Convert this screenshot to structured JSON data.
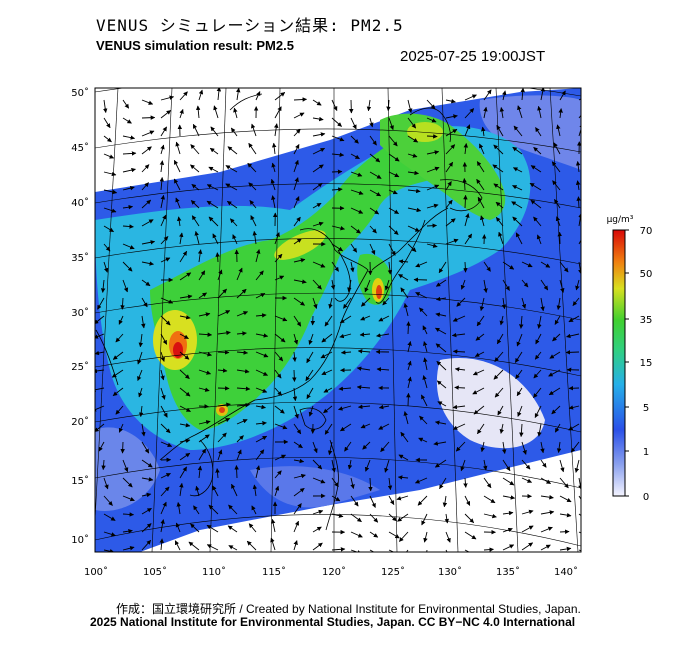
{
  "header": {
    "title_jp": "VENUS シミュレーション結果: PM2.5",
    "title_en": "VENUS simulation result: PM2.5",
    "timestamp": "2025-07-25 19:00JST"
  },
  "map": {
    "lat_labels": [
      "50˚",
      "45˚",
      "40˚",
      "35˚",
      "30˚",
      "25˚",
      "20˚",
      "15˚",
      "10˚"
    ],
    "lon_labels": [
      "100˚",
      "105˚",
      "110˚",
      "115˚",
      "120˚",
      "125˚",
      "130˚",
      "135˚",
      "140˚"
    ],
    "colors": {
      "ocean_clean": "#e8e8f8",
      "low_blue": "#4a66e0",
      "blue": "#2a58f0",
      "cyan": "#26b8e0",
      "green": "#3ad23a",
      "yellow": "#d8e020",
      "orange": "#f07010",
      "red": "#d81010"
    }
  },
  "colorbar": {
    "unit": "μg/m³",
    "ticks": [
      "70",
      "50",
      "35",
      "15",
      "5",
      "1",
      "0"
    ]
  },
  "footer": {
    "credit_line1": "作成：国立環境研究所 / Created by National Institute for Environmental Studies, Japan.",
    "credit_line2": "2025 National Institute for Environmental Studies, Japan. CC BY−NC 4.0 International"
  }
}
